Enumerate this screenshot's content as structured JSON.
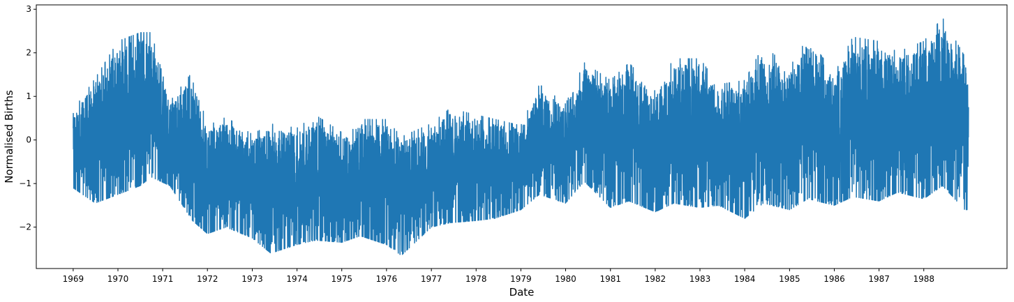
{
  "chart_data": {
    "type": "line",
    "title": "",
    "xlabel": "Date",
    "ylabel": "Normalised Births",
    "xlim": [
      "1968-03-06",
      "1989-11-10"
    ],
    "ylim": [
      -2.95,
      3.1
    ],
    "x_ticks": [
      "1969",
      "1970",
      "1971",
      "1972",
      "1973",
      "1974",
      "1975",
      "1976",
      "1977",
      "1978",
      "1979",
      "1980",
      "1981",
      "1982",
      "1983",
      "1984",
      "1985",
      "1986",
      "1987",
      "1988"
    ],
    "y_ticks": [
      -2,
      -1,
      0,
      1,
      2,
      3
    ],
    "y_tick_labels": [
      "−2",
      "−1",
      "0",
      "1",
      "2",
      "3"
    ],
    "grid": false,
    "legend": false,
    "series": [
      {
        "color": "#1f77b4",
        "x_start": "1969-01-01",
        "x_end": "1988-12-31",
        "frequency": "daily",
        "envelope": {
          "x": [
            "1969-01",
            "1969-07",
            "1970-01",
            "1970-07",
            "1970-10",
            "1971-03",
            "1971-09",
            "1972-01",
            "1972-06",
            "1973-01",
            "1973-06",
            "1974-01",
            "1974-06",
            "1975-01",
            "1975-06",
            "1976-01",
            "1976-05",
            "1977-01",
            "1977-06",
            "1978-01",
            "1978-06",
            "1979-01",
            "1979-06",
            "1980-01",
            "1980-06",
            "1981-01",
            "1981-06",
            "1982-01",
            "1982-06",
            "1983-01",
            "1983-06",
            "1984-01",
            "1984-06",
            "1985-01",
            "1985-06",
            "1986-01",
            "1986-06",
            "1987-01",
            "1987-06",
            "1988-01",
            "1988-06",
            "1988-12"
          ],
          "max": [
            0.7,
            1.45,
            2.3,
            2.5,
            2.5,
            0.9,
            1.6,
            0.35,
            0.55,
            0.15,
            0.4,
            0.3,
            0.6,
            0.2,
            0.5,
            0.5,
            0.1,
            0.4,
            0.75,
            0.6,
            0.5,
            0.35,
            1.3,
            0.85,
            1.8,
            1.4,
            1.8,
            1.15,
            1.9,
            1.9,
            1.3,
            1.4,
            2.2,
            1.7,
            2.4,
            1.55,
            2.4,
            2.3,
            2.05,
            2.3,
            2.85,
            1.95
          ],
          "min": [
            -1.1,
            -1.45,
            -1.25,
            -1.05,
            -0.85,
            -1.05,
            -1.85,
            -2.15,
            -2.0,
            -2.25,
            -2.6,
            -2.4,
            -2.3,
            -2.35,
            -2.2,
            -2.4,
            -2.65,
            -2.0,
            -1.9,
            -1.85,
            -1.8,
            -1.6,
            -1.25,
            -1.45,
            -0.95,
            -1.55,
            -1.4,
            -1.65,
            -1.45,
            -1.55,
            -1.5,
            -1.8,
            -1.45,
            -1.6,
            -1.35,
            -1.5,
            -1.3,
            -1.4,
            -1.2,
            -1.35,
            -1.05,
            -1.6
          ]
        }
      }
    ]
  }
}
